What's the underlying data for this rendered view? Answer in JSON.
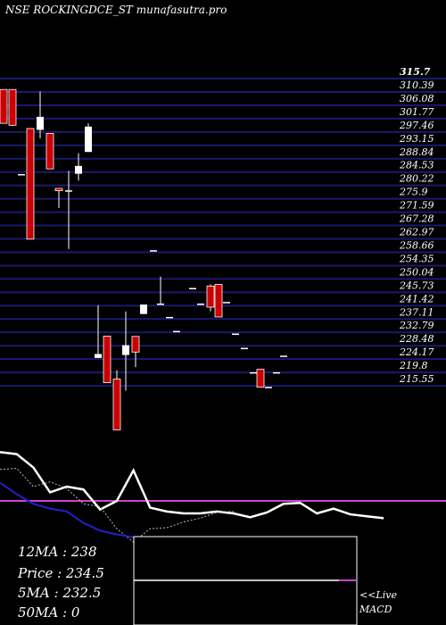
{
  "header": {
    "site": "NSE ROCKINGDCE_ST munafasutra.pro"
  },
  "chart_data": [
    {
      "type": "candlestick",
      "ylim": [
        213.0,
        317.0
      ],
      "grid": true,
      "price_levels": [
        "315.7",
        "310.39",
        "306.08",
        "301.77",
        "297.46",
        "293.15",
        "288.84",
        "284.53",
        "280.22",
        "275.9",
        "271.59",
        "267.28",
        "262.97",
        "258.66",
        "254.35",
        "250.04",
        "245.73",
        "241.42",
        "237.11",
        "232.79",
        "228.48",
        "224.17",
        "219.8",
        "215.55"
      ],
      "candles": [
        {
          "open": 312.0,
          "close": 301.6,
          "high": 312.0,
          "low": 301.6
        },
        {
          "open": 312.0,
          "close": 301.0,
          "high": 312.0,
          "low": 300.8
        },
        {
          "open": 286.0,
          "close": 286.0,
          "high": 286.0,
          "low": 286.0
        },
        {
          "open": 300.0,
          "close": 266.0,
          "high": 300.0,
          "low": 266.0
        },
        {
          "open": 299.6,
          "close": 303.6,
          "high": 311.4,
          "low": 297.0
        },
        {
          "open": 298.5,
          "close": 287.6,
          "high": 298.5,
          "low": 287.6
        },
        {
          "open": 281.6,
          "close": 280.9,
          "high": 281.6,
          "low": 275.6
        },
        {
          "open": 281.0,
          "close": 281.0,
          "high": 287.0,
          "low": 263.0
        },
        {
          "open": 286.1,
          "close": 288.5,
          "high": 292.4,
          "low": 284.0
        },
        {
          "open": 292.8,
          "close": 300.6,
          "high": 301.6,
          "low": 292.8
        },
        {
          "open": 229.5,
          "close": 230.7,
          "high": 245.7,
          "low": 229.5
        },
        {
          "open": 236.2,
          "close": 221.9,
          "high": 236.2,
          "low": 221.9
        },
        {
          "open": 223.0,
          "close": 207.4,
          "high": 225.7,
          "low": 207.4
        },
        {
          "open": 230.4,
          "close": 233.4,
          "high": 243.8,
          "low": 219.4
        },
        {
          "open": 236.1,
          "close": 231.3,
          "high": 236.1,
          "low": 226.7
        },
        {
          "open": 243.0,
          "close": 245.9,
          "high": 245.9,
          "low": 243.0
        },
        {
          "open": 262.6,
          "close": 262.6,
          "high": 262.6,
          "low": 262.6
        },
        {
          "open": 246.2,
          "close": 246.2,
          "high": 254.5,
          "low": 246.2
        },
        {
          "open": 242.1,
          "close": 242.1,
          "high": 242.1,
          "low": 242.1
        },
        {
          "open": 237.8,
          "close": 237.8,
          "high": 237.8,
          "low": 237.8
        },
        {
          "open": 251.0,
          "close": 251.0,
          "high": 251.0,
          "low": 251.0
        },
        {
          "open": 246.2,
          "close": 246.2,
          "high": 246.2,
          "low": 246.2
        },
        {
          "open": 251.6,
          "close": 245.1,
          "high": 252.1,
          "low": 243.8
        },
        {
          "open": 252.1,
          "close": 242.1,
          "high": 252.1,
          "low": 242.1
        },
        {
          "open": 246.7,
          "close": 246.7,
          "high": 246.7,
          "low": 246.7
        },
        {
          "open": 237.0,
          "close": 237.0,
          "high": 237.0,
          "low": 237.0
        },
        {
          "open": 232.6,
          "close": 232.6,
          "high": 232.6,
          "low": 232.6
        },
        {
          "open": 225.1,
          "close": 225.1,
          "high": 225.1,
          "low": 225.1
        },
        {
          "open": 226.0,
          "close": 220.5,
          "high": 226.0,
          "low": 220.5
        },
        {
          "open": 220.6,
          "close": 220.6,
          "high": 220.6,
          "low": 220.6
        },
        {
          "open": 225.1,
          "close": 225.1,
          "high": 225.1,
          "low": 225.1
        },
        {
          "open": 230.2,
          "close": 230.2,
          "high": 230.2,
          "low": 230.2
        }
      ],
      "colors": {
        "bull": "#ffffff",
        "bear": "#cc0000",
        "grid": "#1a1a6e",
        "text": "#ffffff"
      }
    },
    {
      "type": "line",
      "series": [
        {
          "style": "white-solid",
          "values": [
            294,
            292,
            278,
            252,
            258,
            255,
            234,
            243,
            275,
            236,
            232,
            230,
            230,
            232,
            230,
            226,
            231,
            240,
            241,
            230,
            235,
            229,
            227,
            225
          ]
        },
        {
          "style": "white-dotted",
          "values": [
            276,
            277,
            258,
            263,
            256,
            240,
            237,
            214,
            200,
            214,
            215,
            221,
            225,
            231,
            232
          ]
        },
        {
          "style": "blue-solid",
          "values": [
            262,
            250,
            240,
            235,
            232,
            220,
            212,
            208,
            205
          ]
        },
        {
          "style": "magenta",
          "values": [
            250,
            250,
            250,
            250
          ]
        }
      ],
      "ylim": [
        160,
        300
      ]
    }
  ],
  "stats": {
    "ma12": "12MA : 238",
    "price": "Price   : 234.5",
    "ma5": "5MA : 232.5",
    "ma50": "50MA : 0"
  },
  "macd": {
    "live": "<<Live",
    "label": "MACD"
  }
}
